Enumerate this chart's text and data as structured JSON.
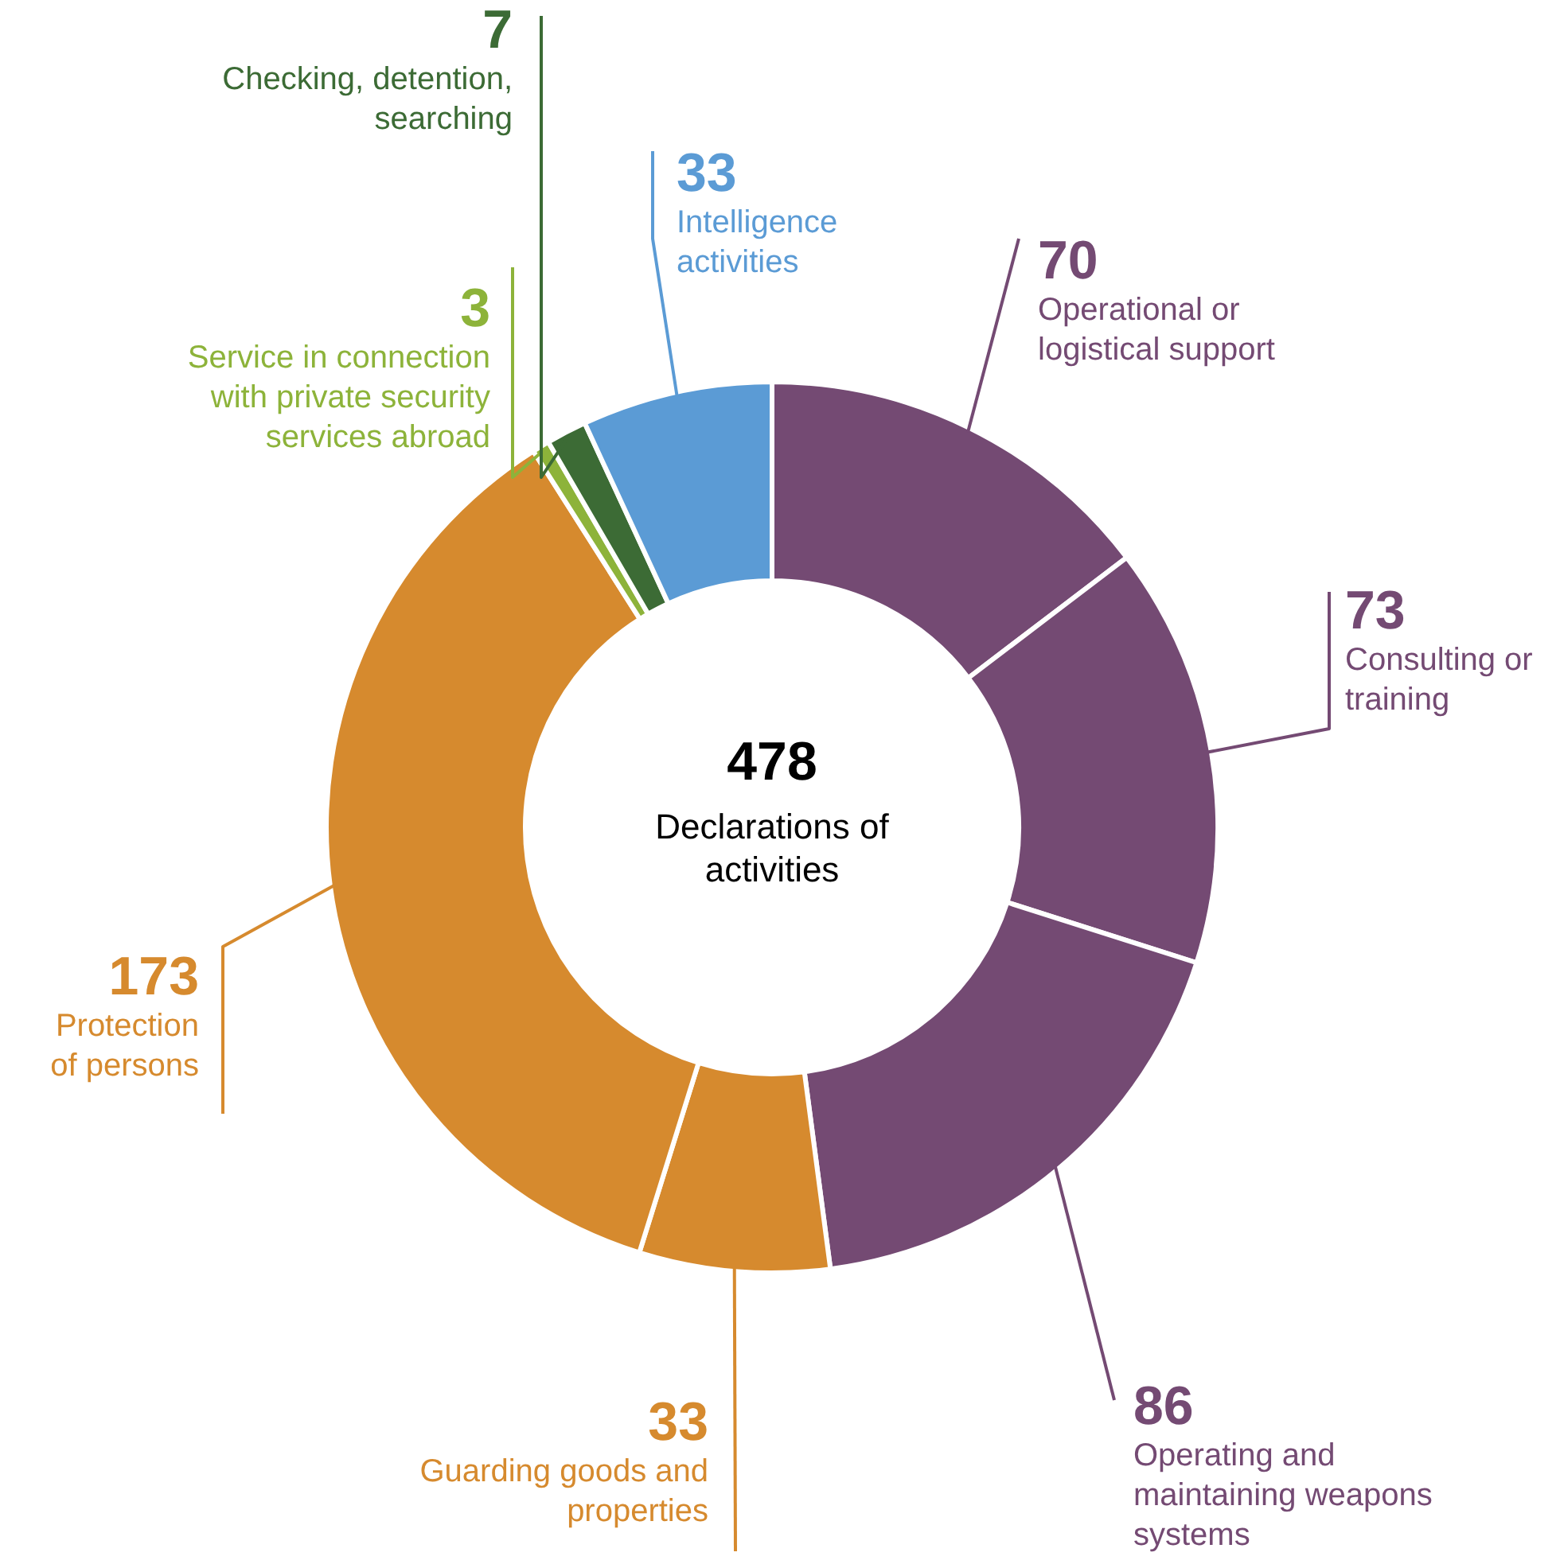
{
  "chart_data": {
    "type": "donut",
    "categories": [
      "Operational or logistical support",
      "Consulting or training",
      "Operating and maintaining weapons systems",
      "Guarding goods and properties",
      "Protection of persons",
      "Service in connection with private security services abroad",
      "Checking, detention, searching",
      "Intelligence activities"
    ],
    "values": [
      70,
      73,
      86,
      33,
      173,
      3,
      7,
      33
    ],
    "colors": [
      "#744a73",
      "#744a73",
      "#744a73",
      "#d68a2e",
      "#d68a2e",
      "#8db33a",
      "#3c6b35",
      "#5b9bd5"
    ],
    "data_labels": true,
    "annotations": [
      "478",
      "Declarations of activities"
    ]
  }
}
